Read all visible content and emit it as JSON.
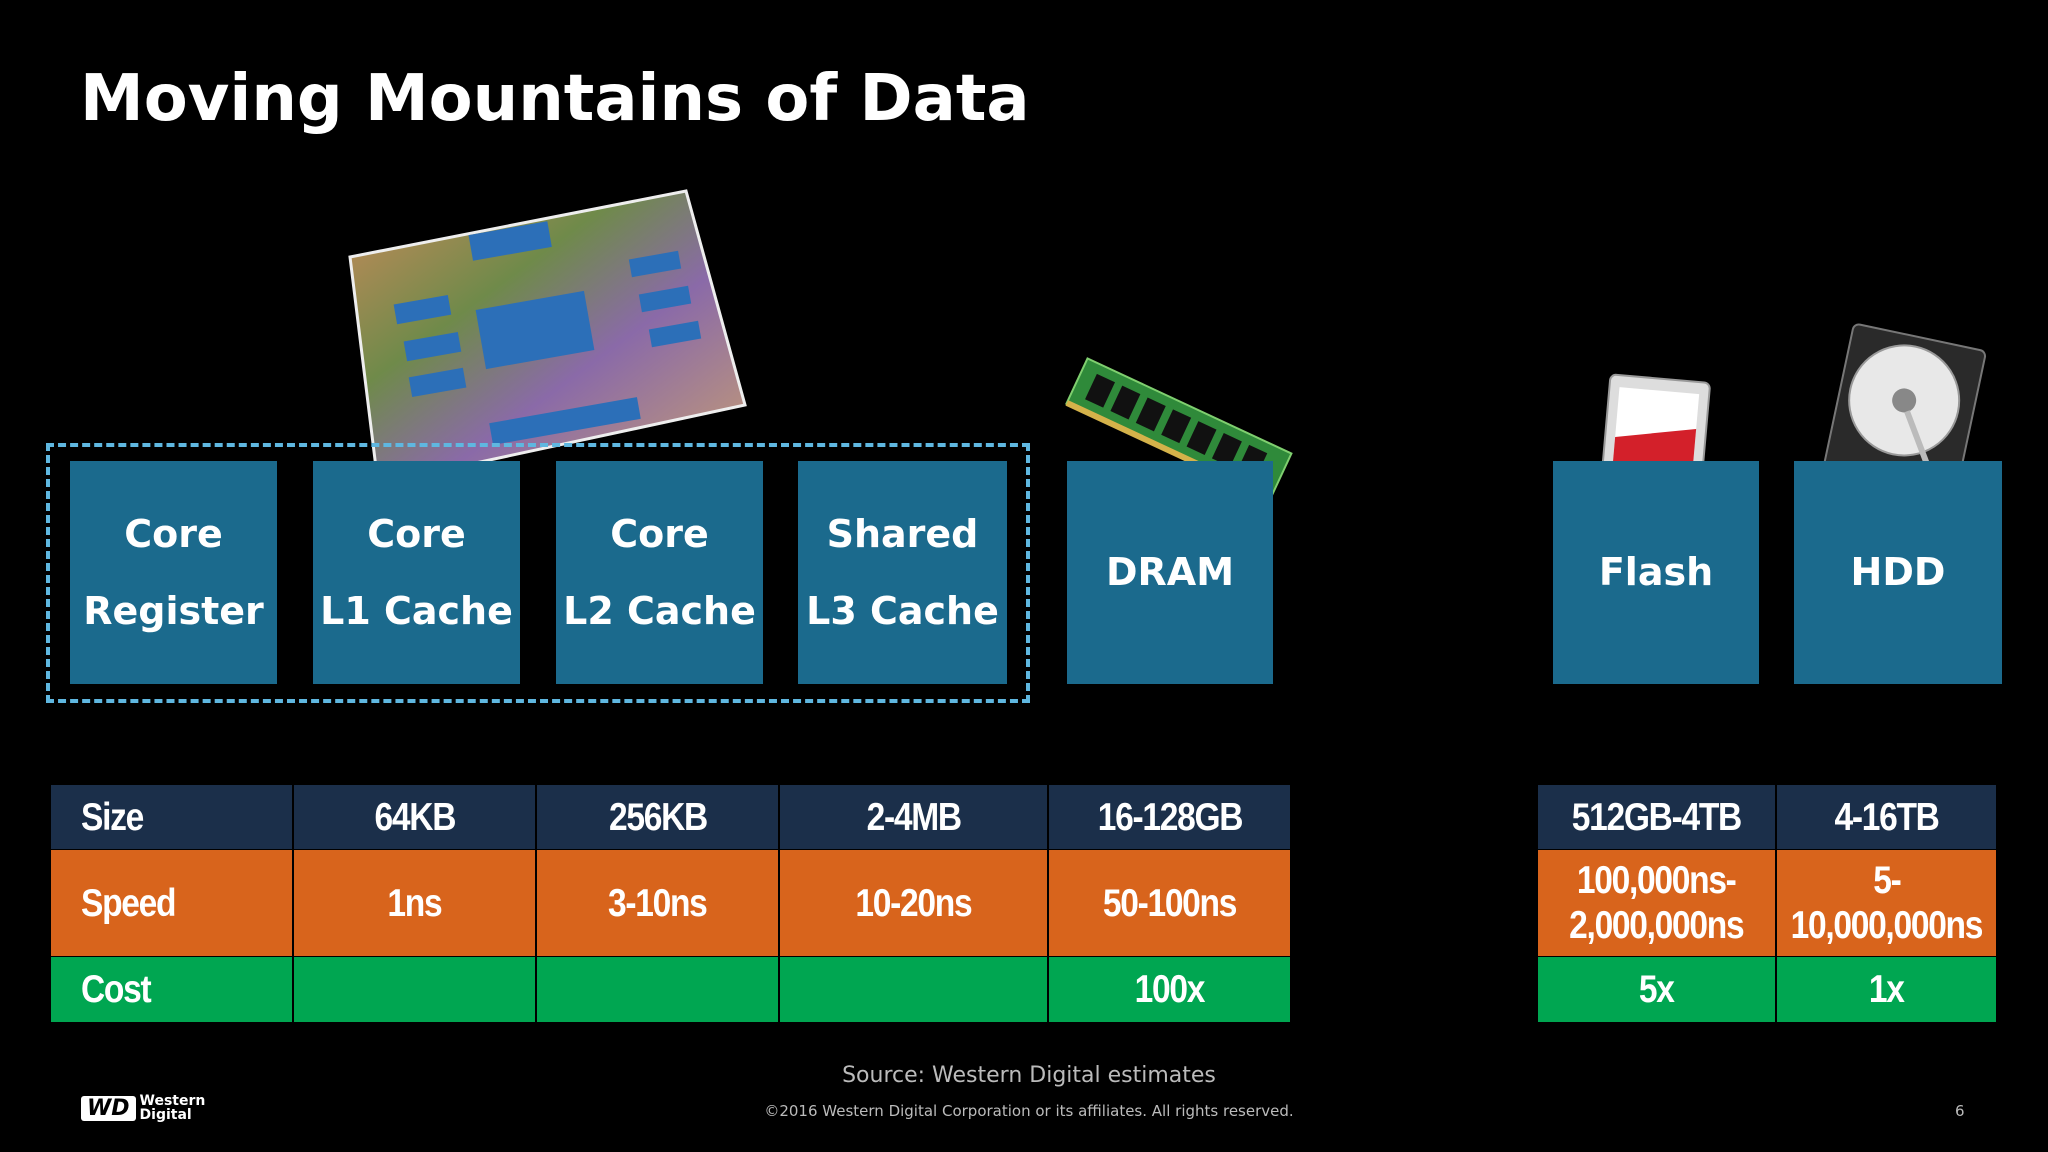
{
  "title": "Moving Mountains of Data",
  "tiers": [
    {
      "lines": [
        "Core",
        "Register"
      ]
    },
    {
      "lines": [
        "Core",
        "L1 Cache"
      ]
    },
    {
      "lines": [
        "Core",
        "L2 Cache"
      ]
    },
    {
      "lines": [
        "Shared",
        "L3 Cache"
      ]
    },
    {
      "lines": [
        "DRAM"
      ]
    },
    {
      "lines": [
        "Flash"
      ]
    },
    {
      "lines": [
        "HDD"
      ]
    }
  ],
  "table_left": {
    "rows": [
      [
        "Size",
        "64KB",
        "256KB",
        "2-4MB",
        "16-128GB"
      ],
      [
        "Speed",
        "1ns",
        "3-10ns",
        "10-20ns",
        "50-100ns"
      ],
      [
        "Cost",
        null,
        null,
        null,
        "100x"
      ]
    ]
  },
  "table_right": {
    "rows": [
      [
        [
          "512GB-4TB"
        ],
        [
          "4-16TB"
        ]
      ],
      [
        [
          "100,000ns-",
          "2,000,000ns"
        ],
        [
          "5-",
          "10,000,000ns"
        ]
      ],
      [
        [
          "5x"
        ],
        [
          "1x"
        ]
      ]
    ]
  },
  "footer": {
    "source": "Source:  Western Digital estimates",
    "copyright": "©2016  Western Digital Corporation  or its affiliates.  All rights reserved.",
    "page": "6",
    "logo": {
      "mark": "WD",
      "line1": "Western",
      "line2": "Digital"
    }
  }
}
